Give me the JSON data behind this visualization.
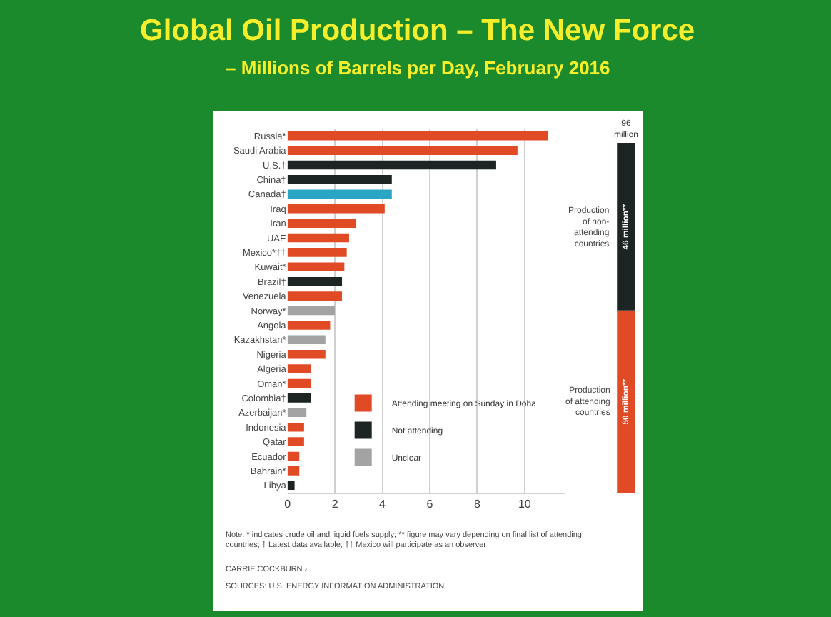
{
  "chart_data": [
    {
      "type": "bar",
      "orientation": "horizontal",
      "title": "Global Oil Production – The New Force",
      "subtitle": "– Millions of Barrels per Day, February 2016",
      "categories": [
        "Russia*",
        "Saudi Arabia",
        "U.S.†",
        "China†",
        "Canada†",
        "Iraq",
        "Iran",
        "UAE",
        "Mexico*††",
        "Kuwait*",
        "Brazil†",
        "Venezuela",
        "Norway*",
        "Angola",
        "Kazakhstan*",
        "Nigeria",
        "Algeria",
        "Oman*",
        "Colombia†",
        "Azerbaijan*",
        "Indonesia",
        "Qatar",
        "Ecuador",
        "Bahrain*",
        "Libya"
      ],
      "series": [
        {
          "name": "Attending meeting on Sunday in Doha",
          "color": "#e04a24",
          "values": [
            11.0,
            9.7,
            null,
            null,
            null,
            4.1,
            2.9,
            2.6,
            2.5,
            2.4,
            null,
            2.3,
            null,
            1.8,
            null,
            1.6,
            1.0,
            1.0,
            null,
            null,
            0.7,
            0.7,
            0.5,
            0.5,
            null
          ]
        },
        {
          "name": "Not attending",
          "color": "#1c2424",
          "colors": [
            "#1c2424",
            "#1c2424",
            "#1c2424",
            "#1c2424",
            "#2aa6c4",
            "#1c2424",
            "#1c2424",
            "#1c2424",
            "#1c2424",
            "#1c2424",
            "#1c2424",
            "#1c2424",
            "#1c2424",
            "#1c2424",
            "#1c2424",
            "#1c2424",
            "#1c2424",
            "#1c2424",
            "#1c2424",
            "#1c2424",
            "#1c2424",
            "#1c2424",
            "#1c2424",
            "#1c2424",
            "#1c2424"
          ],
          "values": [
            null,
            null,
            8.8,
            4.4,
            4.4,
            null,
            null,
            null,
            null,
            null,
            2.3,
            null,
            null,
            null,
            null,
            null,
            null,
            null,
            1.0,
            null,
            null,
            null,
            null,
            null,
            0.3
          ]
        },
        {
          "name": "Unclear",
          "color": "#a3a3a3",
          "values": [
            null,
            null,
            null,
            null,
            null,
            null,
            null,
            null,
            null,
            null,
            null,
            null,
            2.0,
            null,
            1.6,
            null,
            null,
            null,
            null,
            0.8,
            null,
            null,
            null,
            null,
            null
          ]
        }
      ],
      "xlim": [
        0,
        11.7
      ],
      "xticks": [
        0,
        2,
        4,
        6,
        8,
        10
      ],
      "grid": "x",
      "legend": "bottom",
      "annotations": [
        "Note: * indicates crude oil and liquid fuels supply; ** figure may vary depending on final list of attending countries; † Latest data available; †† Mexico will participate as an observer",
        "CARRIE COCKBURN ›",
        "SOURCES: U.S. ENERGY INFORMATION ADMINISTRATION"
      ]
    },
    {
      "type": "bar",
      "stacked": true,
      "categories": [
        null
      ],
      "series": [
        {
          "name": "Production of attending countries",
          "color": "#e04a24",
          "values": [
            50
          ],
          "value_labels": [
            "50 million**"
          ]
        },
        {
          "name": "Production of non-attending countries",
          "color": "#1c2424",
          "values": [
            46
          ],
          "value_labels": [
            "46 million**"
          ]
        }
      ],
      "totals": [
        "96 million"
      ]
    }
  ]
}
